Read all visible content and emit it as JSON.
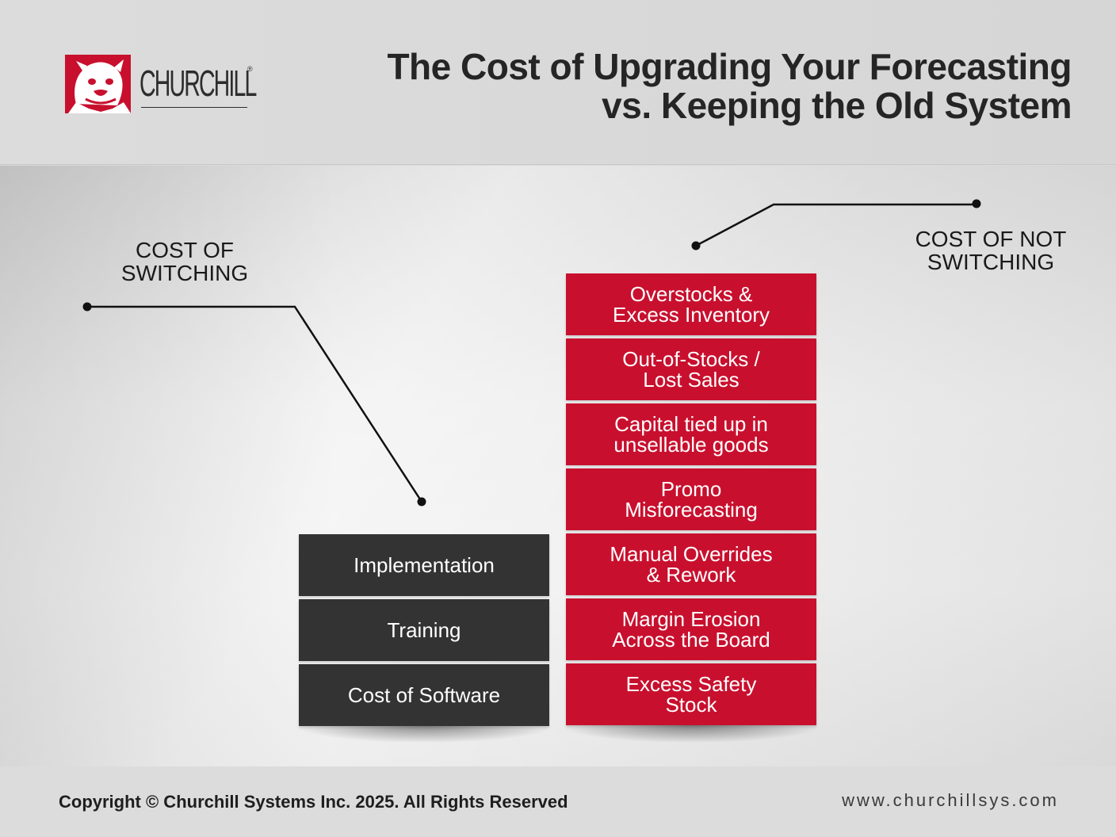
{
  "header": {
    "logo": {
      "wordmark": "CHURCHILL",
      "reg": "®",
      "icon": "bulldog-icon"
    },
    "title_line1": "The Cost of Upgrading Your Forecasting",
    "title_line2": "vs. Keeping the Old System"
  },
  "diagram": {
    "left_label": "COST OF\nSWITCHING",
    "right_label": "COST OF NOT\nSWITCHING",
    "switching_costs": [
      {
        "label": "Implementation"
      },
      {
        "label": "Training"
      },
      {
        "label": "Cost of Software"
      }
    ],
    "not_switching_costs": [
      {
        "label": "Overstocks &\nExcess Inventory"
      },
      {
        "label": "Out-of-Stocks /\nLost Sales"
      },
      {
        "label": "Capital tied up in\nunsellable goods"
      },
      {
        "label": "Promo\nMisforecasting"
      },
      {
        "label": "Manual Overrides\n& Rework"
      },
      {
        "label": "Margin Erosion\nAcross the Board"
      },
      {
        "label": "Excess Safety\nStock"
      }
    ],
    "colors": {
      "dark_block": "#333333",
      "red_block": "#c8102e",
      "brand_red": "#c8102e"
    }
  },
  "footer": {
    "copyright": "Copyright © Churchill Systems Inc. 2025. All Rights Reserved",
    "website": "www.churchillsys.com"
  }
}
